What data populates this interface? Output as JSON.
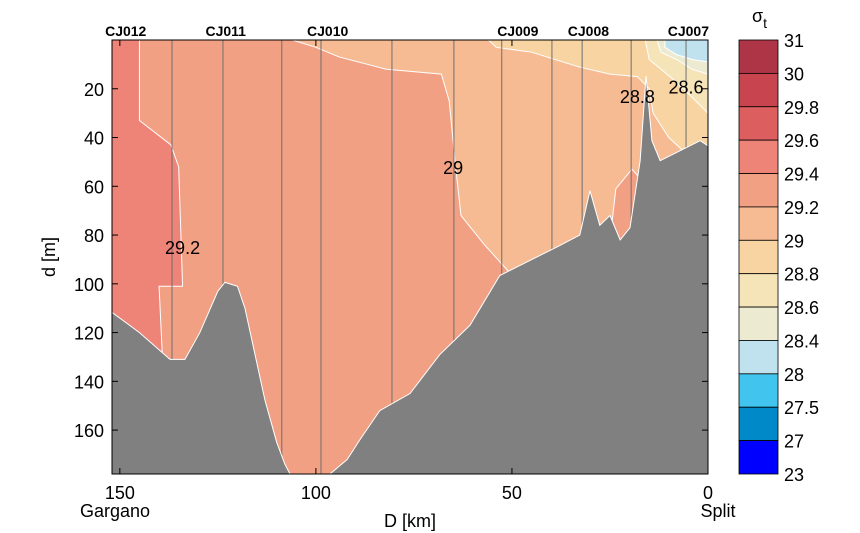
{
  "chart_data": {
    "type": "heatmap",
    "subtype": "filled-contour-section",
    "xlabel": "D [km]",
    "ylabel": "d [m]",
    "xlim": [
      152,
      0
    ],
    "ylim": [
      0,
      178
    ],
    "x_ticks": [
      150,
      100,
      50,
      0
    ],
    "y_ticks": [
      20,
      40,
      60,
      80,
      100,
      120,
      140,
      160
    ],
    "x_end_labels": {
      "left": "Gargano",
      "right": "Split"
    },
    "stations": [
      {
        "name": "CJ012",
        "label_D": 148.5
      },
      {
        "name": "CJ011",
        "label_D": 123
      },
      {
        "name": "CJ010",
        "label_D": 97
      },
      {
        "name": "CJ009",
        "label_D": 48.5
      },
      {
        "name": "CJ008",
        "label_D": 30.5
      },
      {
        "name": "CJ007",
        "label_D": 5
      }
    ],
    "cast_lines_D": [
      136.7,
      123.7,
      108.7,
      98.7,
      80.6,
      64.8,
      52.6,
      39.8,
      32.1,
      19.6,
      5.6
    ],
    "colorbar": {
      "title": "σt",
      "levels": [
        "31",
        "30",
        "29.8",
        "29.6",
        "29.4",
        "29.2",
        "29",
        "28.8",
        "28.6",
        "28.4",
        "28",
        "27.5",
        "27",
        "23"
      ],
      "colors": [
        "#ad3545",
        "#c8444f",
        "#dc5e5f",
        "#ee8378",
        "#f2a084",
        "#f6bb93",
        "#f8d4a2",
        "#f6e4b9",
        "#ecebd2",
        "#c0e2ee",
        "#41c4ee",
        "#0089c8",
        "#0000ff"
      ]
    },
    "background_color": "#f2a084",
    "seabed_color": "#808080",
    "regions": [
      {
        "range": "29.4-29.6",
        "color": "#ee8378",
        "points": [
          [
            152,
            0
          ],
          [
            145,
            0
          ],
          [
            145,
            33
          ],
          [
            137,
            43
          ],
          [
            135,
            52
          ],
          [
            134,
            101
          ],
          [
            140,
            101
          ],
          [
            139,
            135
          ],
          [
            152,
            135
          ]
        ]
      },
      {
        "range": "29-29.2",
        "color": "#f6bb93",
        "points": [
          [
            106,
            0
          ],
          [
            100,
            3
          ],
          [
            94,
            7
          ],
          [
            82,
            12
          ],
          [
            68,
            14
          ],
          [
            66,
            25
          ],
          [
            64.5,
            50
          ],
          [
            63,
            72
          ],
          [
            57,
            84
          ],
          [
            48,
            100
          ],
          [
            43,
            104
          ],
          [
            33,
            94
          ],
          [
            25,
            82
          ],
          [
            23.5,
            61
          ],
          [
            19.4,
            53
          ],
          [
            15.5,
            60
          ],
          [
            14,
            100
          ],
          [
            0,
            100
          ],
          [
            0,
            0
          ]
        ]
      },
      {
        "range": "28.8-29",
        "color": "#f8d4a2",
        "points": [
          [
            56,
            0
          ],
          [
            54,
            3
          ],
          [
            45,
            5
          ],
          [
            33,
            11
          ],
          [
            25,
            14
          ],
          [
            18,
            15
          ],
          [
            15,
            20
          ],
          [
            14,
            30
          ],
          [
            10,
            40
          ],
          [
            6,
            46
          ],
          [
            2,
            48
          ],
          [
            0,
            48
          ],
          [
            0,
            0
          ]
        ]
      },
      {
        "range": "28.6-28.8",
        "color": "#f6e4b9",
        "points": [
          [
            16,
            0
          ],
          [
            15,
            8
          ],
          [
            12,
            12
          ],
          [
            9,
            16
          ],
          [
            5,
            22
          ],
          [
            0,
            30
          ],
          [
            0,
            0
          ]
        ]
      },
      {
        "range": "28.4-28.6",
        "color": "#ecebd2",
        "points": [
          [
            13,
            0
          ],
          [
            12,
            5
          ],
          [
            8,
            8
          ],
          [
            4,
            12
          ],
          [
            0,
            14
          ],
          [
            0,
            0
          ]
        ]
      },
      {
        "range": "28-28.4",
        "color": "#c0e2ee",
        "points": [
          [
            11,
            0
          ],
          [
            11,
            3
          ],
          [
            8,
            6
          ],
          [
            4,
            8
          ],
          [
            0,
            9
          ],
          [
            0,
            0
          ]
        ]
      }
    ],
    "bathymetry": [
      [
        152,
        111.7
      ],
      [
        145,
        120
      ],
      [
        137.2,
        131
      ],
      [
        133.4,
        131
      ],
      [
        129.6,
        120
      ],
      [
        125,
        103
      ],
      [
        123.2,
        99.4
      ],
      [
        120,
        101
      ],
      [
        118.1,
        110
      ],
      [
        113,
        147.7
      ],
      [
        110,
        165
      ],
      [
        107.9,
        174
      ],
      [
        106.6,
        178
      ],
      [
        96.4,
        178
      ],
      [
        92,
        172
      ],
      [
        88.8,
        164
      ],
      [
        83.7,
        152
      ],
      [
        76,
        145
      ],
      [
        68.4,
        129
      ],
      [
        60.7,
        117
      ],
      [
        53.1,
        96.6
      ],
      [
        45.4,
        90.4
      ],
      [
        37.8,
        84.3
      ],
      [
        32.7,
        80
      ],
      [
        30.1,
        61.8
      ],
      [
        27.6,
        76
      ],
      [
        25,
        72
      ],
      [
        22.4,
        82
      ],
      [
        19.9,
        77
      ],
      [
        17.3,
        49.5
      ],
      [
        15.8,
        14.7
      ],
      [
        14.3,
        41.3
      ],
      [
        12.2,
        49.5
      ],
      [
        7.1,
        45.4
      ],
      [
        2,
        41.3
      ],
      [
        0,
        43.4
      ]
    ],
    "contour_labels": [
      {
        "text": "29.2",
        "D": 134,
        "d": 85
      },
      {
        "text": "29",
        "D": 65,
        "d": 52
      },
      {
        "text": "28.8",
        "D": 18,
        "d": 23
      },
      {
        "text": "28.6",
        "D": 5.6,
        "d": 19
      }
    ]
  }
}
